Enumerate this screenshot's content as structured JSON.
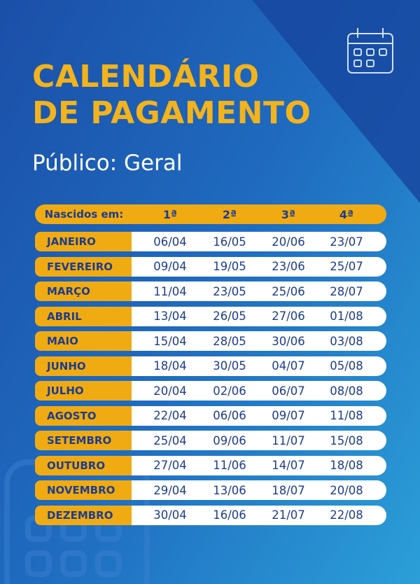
{
  "header": {
    "title": [
      "CALENDÁRIO",
      "DE PAGAMENTO"
    ],
    "subtitle": "Público: Geral"
  },
  "table": {
    "columns": [
      "Nascidos em:",
      "1ª",
      "2ª",
      "3ª",
      "4ª"
    ],
    "rows": [
      [
        "JANEIRO",
        "06/04",
        "16/05",
        "20/06",
        "23/07"
      ],
      [
        "FEVEREIRO",
        "09/04",
        "19/05",
        "23/06",
        "25/07"
      ],
      [
        "MARÇO",
        "11/04",
        "23/05",
        "25/06",
        "28/07"
      ],
      [
        "ABRIL",
        "13/04",
        "26/05",
        "27/06",
        "01/08"
      ],
      [
        "MAIO",
        "15/04",
        "28/05",
        "30/06",
        "03/08"
      ],
      [
        "JUNHO",
        "18/04",
        "30/05",
        "04/07",
        "05/08"
      ],
      [
        "JULHO",
        "20/04",
        "02/06",
        "06/07",
        "08/08"
      ],
      [
        "AGOSTO",
        "22/04",
        "06/06",
        "09/07",
        "11/08"
      ],
      [
        "SETEMBRO",
        "25/04",
        "09/06",
        "11/07",
        "15/08"
      ],
      [
        "OUTUBRO",
        "27/04",
        "11/06",
        "14/07",
        "18/08"
      ],
      [
        "NOVEMBRO",
        "29/04",
        "13/06",
        "18/07",
        "20/08"
      ],
      [
        "DEZEMBRO",
        "30/04",
        "16/06",
        "21/07",
        "22/08"
      ]
    ]
  }
}
